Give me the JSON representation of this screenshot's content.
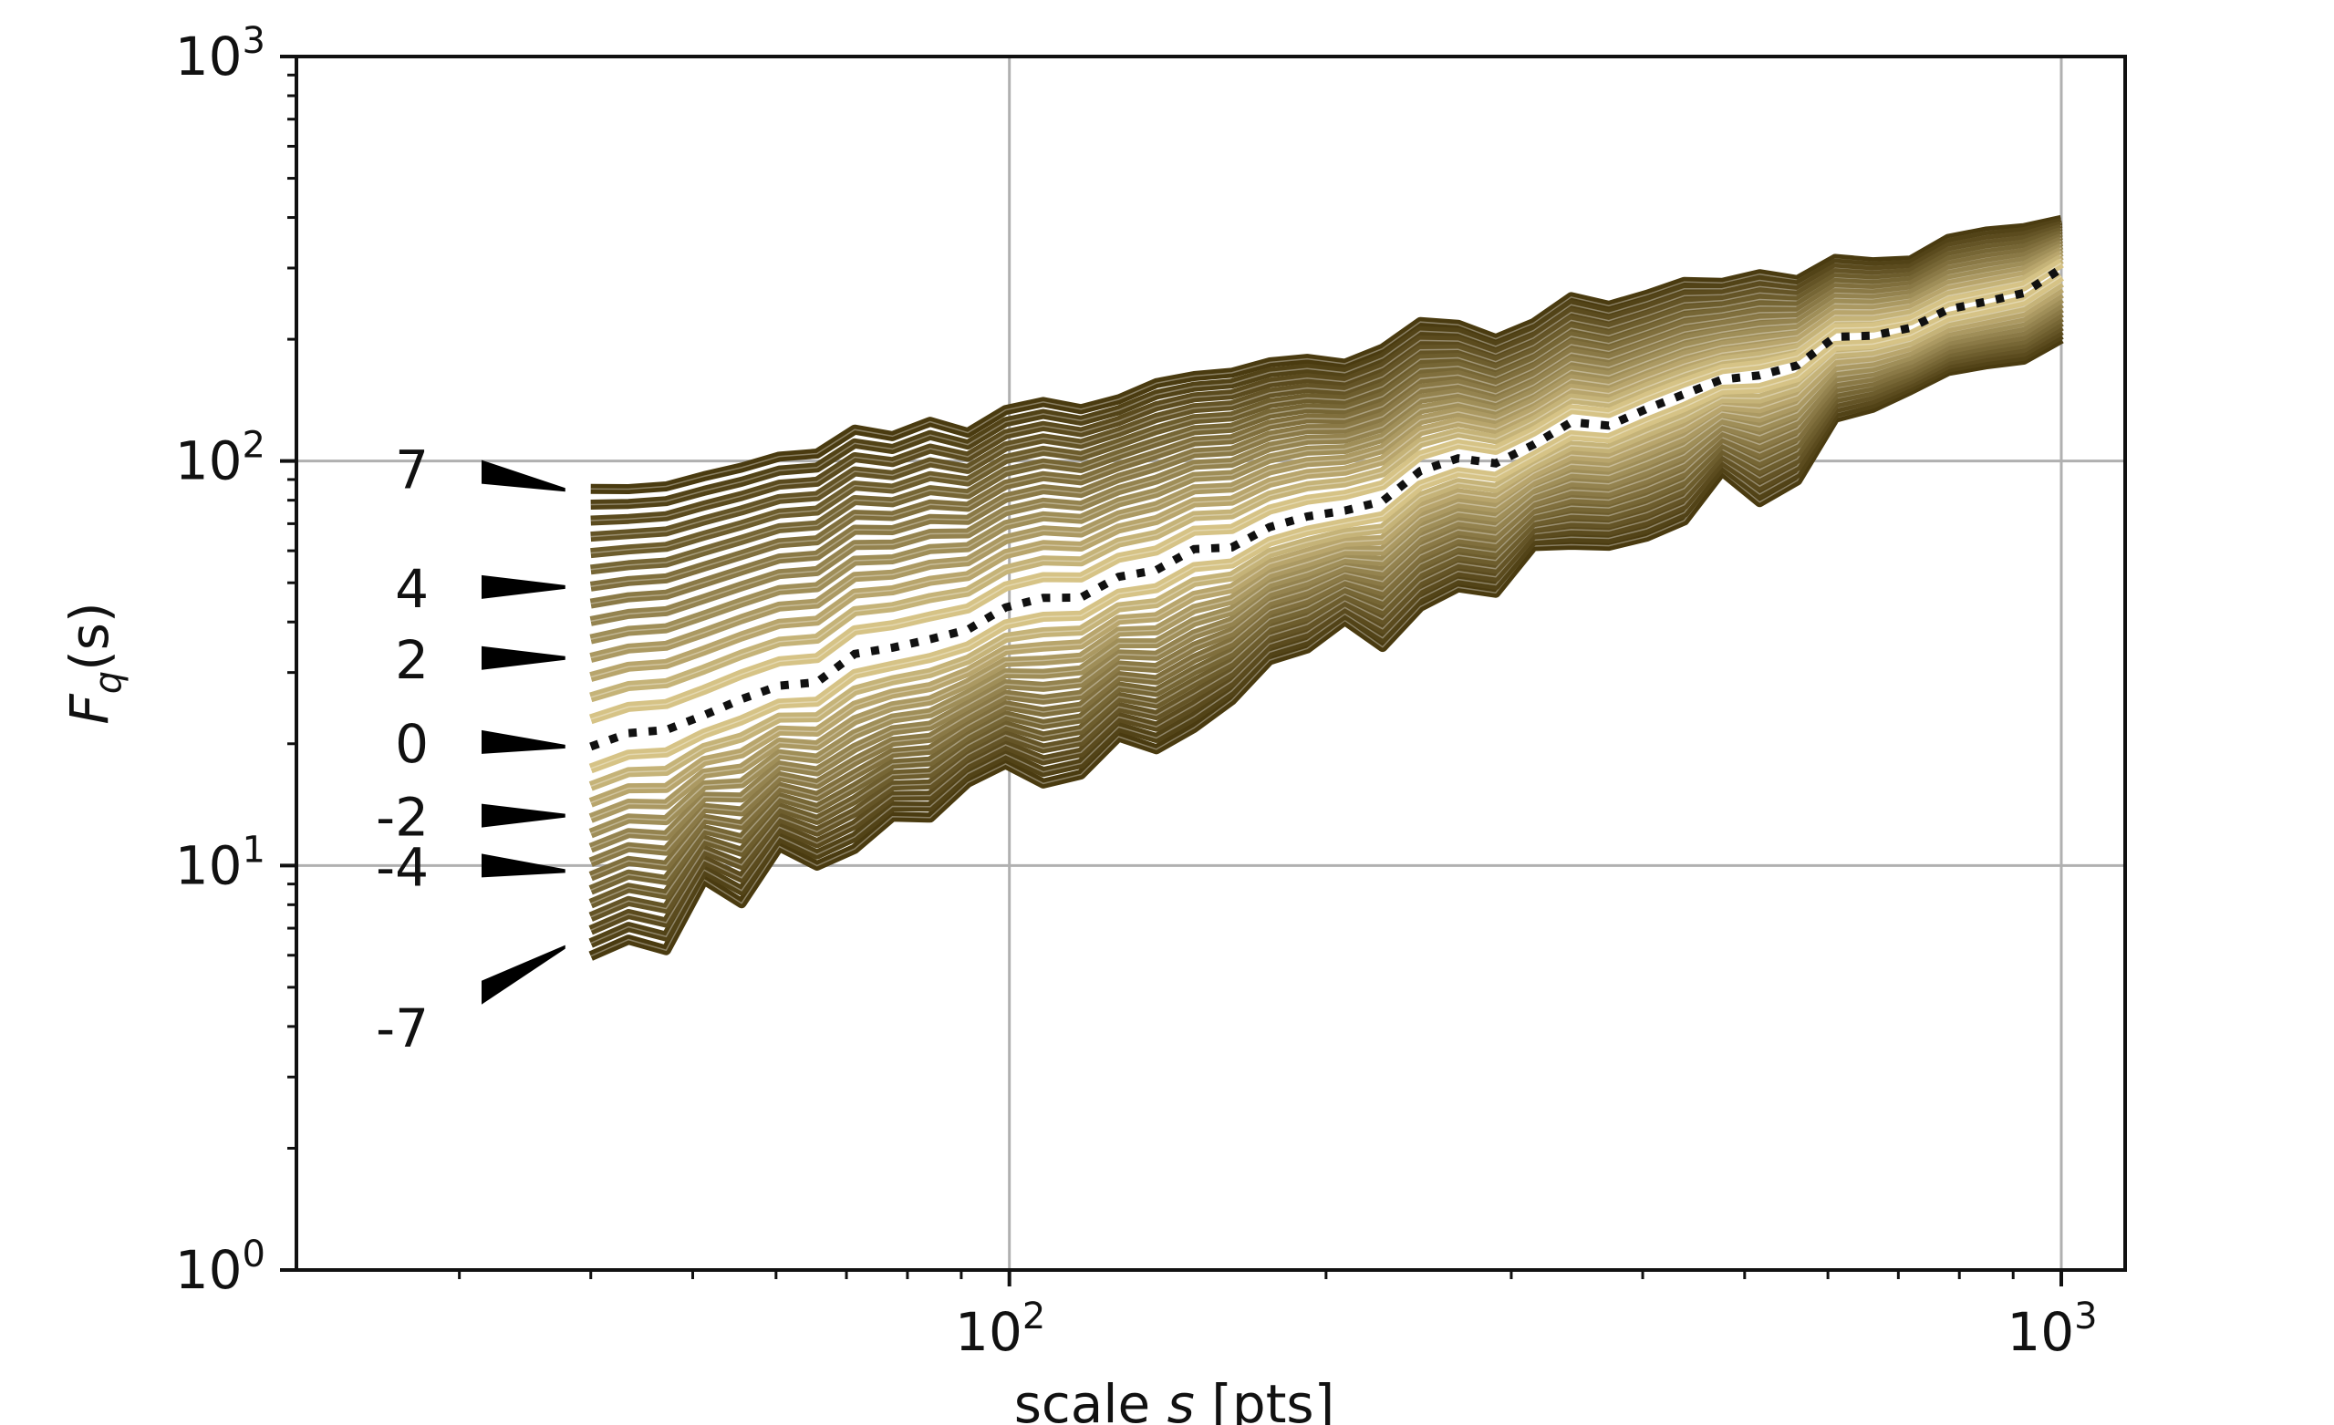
{
  "chart_data": {
    "type": "line",
    "xlabel": {
      "pre": "scale ",
      "var": "s",
      "post": " [pts]"
    },
    "ylabel": {
      "main": "F",
      "sub": "q",
      "post": "(s)"
    },
    "x_scale": "log",
    "y_scale": "log",
    "xlim": [
      21,
      1150
    ],
    "ylim": [
      1,
      1000
    ],
    "grid": true,
    "x_major_ticks": [
      {
        "value": 100,
        "base": "10",
        "exp": "2"
      },
      {
        "value": 1000,
        "base": "10",
        "exp": "3"
      }
    ],
    "y_major_ticks": [
      {
        "value": 1,
        "base": "10",
        "exp": "0"
      },
      {
        "value": 10,
        "base": "10",
        "exp": "1"
      },
      {
        "value": 100,
        "base": "10",
        "exp": "2"
      },
      {
        "value": 1000,
        "base": "10",
        "exp": "3"
      }
    ],
    "x_range": [
      40,
      1000
    ],
    "q_values": [
      -7,
      -6.5,
      -6,
      -5.5,
      -5,
      -4.5,
      -4,
      -3.5,
      -3,
      -2.5,
      -2,
      -1.5,
      -1,
      -0.5,
      0,
      0.5,
      1,
      1.5,
      2,
      2.5,
      3,
      3.5,
      4,
      4.5,
      5,
      5.5,
      6,
      6.5,
      7
    ],
    "series_endpoints": {
      "start_at_x40": {
        "q_-7": 6.3,
        "q_0": 19.7,
        "q_7": 85
      },
      "end_at_x1000": {
        "q_-7": 185,
        "q_0": 290,
        "q_7": 395
      }
    },
    "dotted_series_q": 0,
    "q_labels": [
      "7",
      "4",
      "2",
      "0",
      "-2",
      "-4",
      "-7"
    ],
    "colors": {
      "dark": "#4a3b10",
      "light": "#f0dc9c",
      "dotted": "#111111"
    }
  }
}
